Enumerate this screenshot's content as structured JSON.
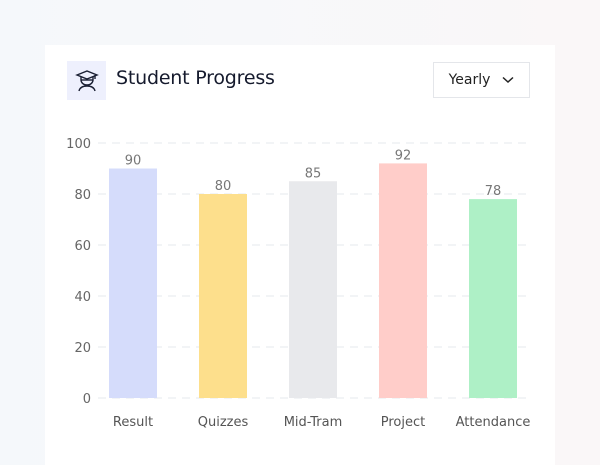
{
  "header": {
    "title": "Student Progress",
    "icon": "graduation-cap-student-icon",
    "period_select": {
      "value": "Yearly",
      "icon": "chevron-down-icon"
    }
  },
  "chart_data": {
    "type": "bar",
    "categories": [
      "Result",
      "Quizzes",
      "Mid-Tram",
      "Project",
      "Attendance"
    ],
    "values": [
      90,
      80,
      85,
      92,
      78
    ],
    "colors": [
      "#d5dcfb",
      "#fddf8c",
      "#e8e9ec",
      "#ffcdc9",
      "#aef0c6"
    ],
    "ylim": [
      0,
      100
    ],
    "yticks": [
      0,
      20,
      40,
      60,
      80,
      100
    ],
    "grid": true,
    "data_labels": true
  }
}
